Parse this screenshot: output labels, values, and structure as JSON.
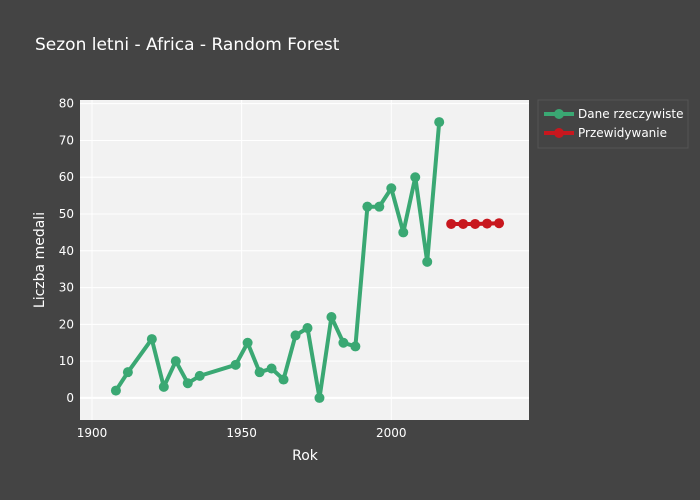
{
  "chart_data": {
    "type": "line",
    "title": "Sezon letni - Africa - Random Forest",
    "xlabel": "Rok",
    "ylabel": "Liczba medali",
    "xlim": [
      1896,
      2046
    ],
    "ylim": [
      -6,
      81
    ],
    "x_ticks": [
      1900,
      1950,
      2000
    ],
    "y_ticks": [
      0,
      10,
      20,
      30,
      40,
      50,
      60,
      70,
      80
    ],
    "grid": true,
    "legend_position": "top-right",
    "series": [
      {
        "name": "Dane rzeczywiste",
        "color": "#3aa873",
        "x": [
          1908,
          1912,
          1920,
          1924,
          1928,
          1932,
          1936,
          1948,
          1952,
          1956,
          1960,
          1964,
          1968,
          1972,
          1976,
          1980,
          1984,
          1988,
          1992,
          1996,
          2000,
          2004,
          2008,
          2012,
          2016
        ],
        "y": [
          2,
          7,
          16,
          3,
          10,
          4,
          6,
          9,
          15,
          7,
          8,
          5,
          17,
          19,
          0,
          22,
          15,
          14,
          52,
          52,
          57,
          45,
          60,
          37,
          75
        ]
      },
      {
        "name": "Przewidywanie",
        "color": "#c8171e",
        "x": [
          2020,
          2024,
          2028,
          2032,
          2036
        ],
        "y": [
          47.3,
          47.3,
          47.3,
          47.4,
          47.5
        ]
      }
    ]
  }
}
